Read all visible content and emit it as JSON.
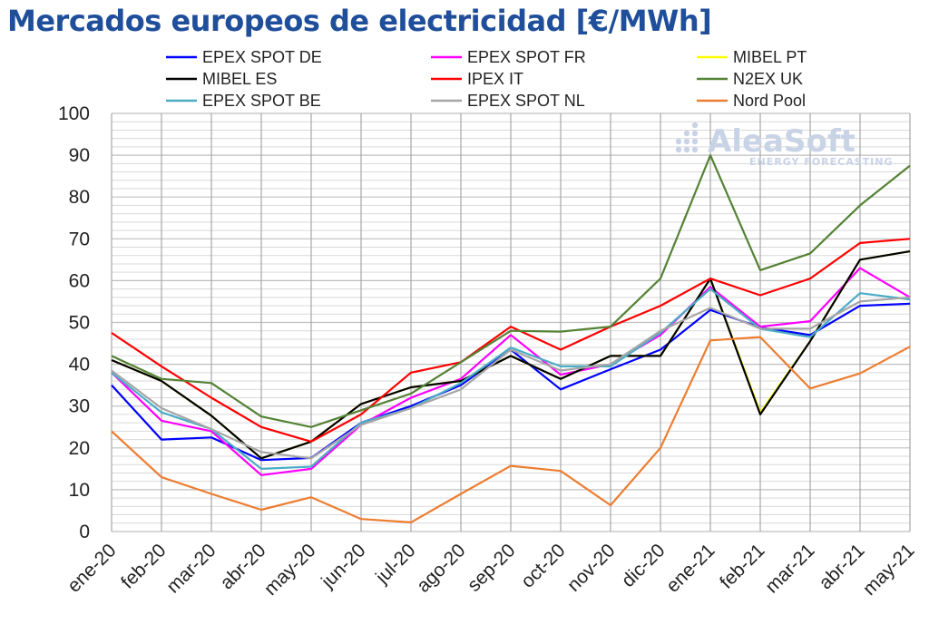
{
  "chart_data": {
    "type": "line",
    "title": "Mercados europeos de electricidad [€/MWh]",
    "xlabel": "",
    "ylabel": "",
    "ylim": [
      0,
      100
    ],
    "yticks": [
      0,
      10,
      20,
      30,
      40,
      50,
      60,
      70,
      80,
      90,
      100
    ],
    "grid": true,
    "legend_position": "top",
    "categories": [
      "ene-20",
      "feb-20",
      "mar-20",
      "abr-20",
      "may-20",
      "jun-20",
      "jul-20",
      "ago-20",
      "sep-20",
      "oct-20",
      "nov-20",
      "dic-20",
      "ene-21",
      "feb-21",
      "mar-21",
      "abr-21",
      "may-21"
    ],
    "series": [
      {
        "name": "EPEX SPOT DE",
        "color": "#0000ff",
        "values": [
          35.0,
          22.0,
          22.5,
          17.1,
          17.6,
          26.0,
          30.0,
          35.0,
          43.5,
          34.0,
          38.8,
          43.5,
          53.0,
          48.8,
          47.0,
          54.0,
          54.5
        ]
      },
      {
        "name": "EPEX SPOT FR",
        "color": "#ff00ff",
        "values": [
          38.0,
          26.5,
          24.0,
          13.5,
          15.0,
          25.5,
          32.0,
          36.5,
          47.0,
          37.5,
          40.0,
          47.0,
          58.5,
          49.0,
          50.3,
          63.0,
          56.0
        ]
      },
      {
        "name": "MIBEL PT",
        "color": "#ffff00",
        "values": [
          41.0,
          36.0,
          27.7,
          17.5,
          21.5,
          30.5,
          34.5,
          36.0,
          42.0,
          36.5,
          42.0,
          42.0,
          60.5,
          28.5,
          45.5,
          65.0,
          67.0
        ]
      },
      {
        "name": "MIBEL ES",
        "color": "#000000",
        "values": [
          41.0,
          36.0,
          27.7,
          17.5,
          21.5,
          30.5,
          34.5,
          36.0,
          42.0,
          36.5,
          42.0,
          42.0,
          60.5,
          28.0,
          45.5,
          65.0,
          67.0
        ]
      },
      {
        "name": "IPEX IT",
        "color": "#ff0000",
        "values": [
          47.5,
          39.5,
          32.0,
          25.0,
          21.5,
          28.0,
          38.0,
          40.5,
          49.0,
          43.5,
          49.0,
          54.0,
          60.5,
          56.5,
          60.5,
          69.0,
          70.0
        ]
      },
      {
        "name": "N2EX UK",
        "color": "#548235",
        "values": [
          42.0,
          36.5,
          35.5,
          27.5,
          25.0,
          29.0,
          33.0,
          40.5,
          48.0,
          47.8,
          49.0,
          60.5,
          90.0,
          62.5,
          66.5,
          78.0,
          87.5
        ]
      },
      {
        "name": "EPEX SPOT BE",
        "color": "#4bacc6",
        "values": [
          38.0,
          28.5,
          24.5,
          15.0,
          15.5,
          26.0,
          29.5,
          35.5,
          44.0,
          39.5,
          39.5,
          47.5,
          58.0,
          48.5,
          46.5,
          57.0,
          55.5
        ]
      },
      {
        "name": "EPEX SPOT NL",
        "color": "#a6a6a6",
        "values": [
          38.5,
          29.5,
          24.5,
          19.0,
          17.5,
          25.5,
          29.5,
          34.0,
          43.5,
          38.5,
          40.0,
          48.0,
          53.5,
          48.5,
          48.5,
          55.0,
          56.0
        ]
      },
      {
        "name": "Nord Pool",
        "color": "#ed7d31",
        "values": [
          24.0,
          13.0,
          9.0,
          5.2,
          8.2,
          3.0,
          2.2,
          9.0,
          15.7,
          14.5,
          6.3,
          20.0,
          45.7,
          46.5,
          34.2,
          37.8,
          44.2
        ]
      }
    ],
    "watermark": {
      "main": "AleaSoft",
      "sub": "ENERGY FORECASTING"
    }
  }
}
